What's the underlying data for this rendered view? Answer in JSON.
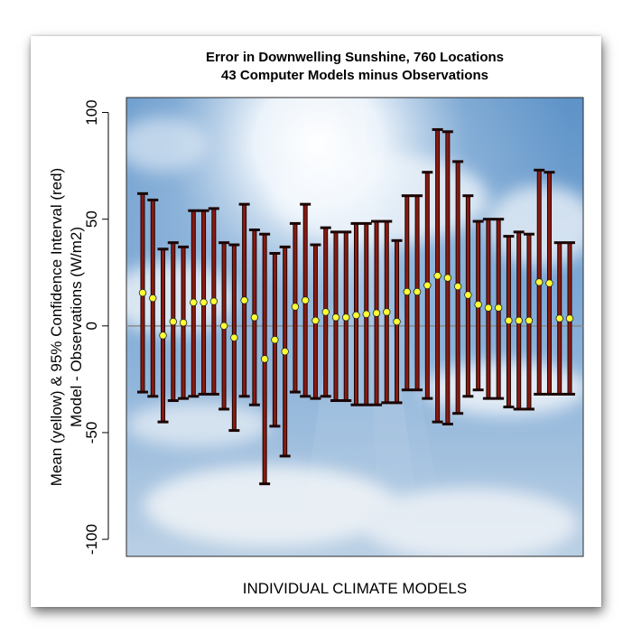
{
  "chart_data": {
    "type": "errorbar",
    "title": "Error in Downwelling Sunshine, 760 Locations",
    "subtitle": "43 Computer Models minus Observations",
    "xlabel": "INDIVIDUAL CLIMATE MODELS",
    "ylabel_line1": "Mean (yellow) & 95% Confidence Interval (red)",
    "ylabel_line2": "Model - Observations (W/m2)",
    "ylim": [
      -108,
      107
    ],
    "yticks": [
      100,
      50,
      0,
      -50,
      -100
    ],
    "ytick_labels": [
      "100",
      "50",
      "0",
      "-50",
      "-100"
    ],
    "colors": {
      "mean": "#ffff33",
      "interval": "#8b1a10",
      "zero_line": "#8a8a8a"
    },
    "points": [
      {
        "mean": 15.5,
        "upper": 62,
        "lower": -31
      },
      {
        "mean": 13,
        "upper": 59,
        "lower": -33
      },
      {
        "mean": -4.5,
        "upper": 36,
        "lower": -45
      },
      {
        "mean": 2,
        "upper": 39,
        "lower": -35
      },
      {
        "mean": 1.5,
        "upper": 37,
        "lower": -34
      },
      {
        "mean": 11,
        "upper": 54,
        "lower": -33
      },
      {
        "mean": 11,
        "upper": 54,
        "lower": -32
      },
      {
        "mean": 11.5,
        "upper": 55,
        "lower": -32
      },
      {
        "mean": 0,
        "upper": 39,
        "lower": -39
      },
      {
        "mean": -5.5,
        "upper": 38,
        "lower": -49
      },
      {
        "mean": 12,
        "upper": 57,
        "lower": -33
      },
      {
        "mean": 4,
        "upper": 45,
        "lower": -37
      },
      {
        "mean": -15.5,
        "upper": 43,
        "lower": -74
      },
      {
        "mean": -6.5,
        "upper": 34,
        "lower": -47
      },
      {
        "mean": -12,
        "upper": 37,
        "lower": -61
      },
      {
        "mean": 9,
        "upper": 48,
        "lower": -31
      },
      {
        "mean": 12,
        "upper": 57,
        "lower": -33
      },
      {
        "mean": 2.5,
        "upper": 38,
        "lower": -34
      },
      {
        "mean": 6.5,
        "upper": 46,
        "lower": -33
      },
      {
        "mean": 4,
        "upper": 44,
        "lower": -35
      },
      {
        "mean": 4,
        "upper": 44,
        "lower": -35
      },
      {
        "mean": 5,
        "upper": 48,
        "lower": -37
      },
      {
        "mean": 5.5,
        "upper": 48,
        "lower": -37
      },
      {
        "mean": 6,
        "upper": 49,
        "lower": -37
      },
      {
        "mean": 6.5,
        "upper": 49,
        "lower": -36
      },
      {
        "mean": 2,
        "upper": 40,
        "lower": -36
      },
      {
        "mean": 16,
        "upper": 61,
        "lower": -30
      },
      {
        "mean": 16,
        "upper": 61,
        "lower": -30
      },
      {
        "mean": 19,
        "upper": 72,
        "lower": -34
      },
      {
        "mean": 23.5,
        "upper": 92,
        "lower": -45
      },
      {
        "mean": 22.5,
        "upper": 91,
        "lower": -46
      },
      {
        "mean": 18.5,
        "upper": 77,
        "lower": -41
      },
      {
        "mean": 14.5,
        "upper": 61,
        "lower": -33
      },
      {
        "mean": 10,
        "upper": 49,
        "lower": -30
      },
      {
        "mean": 8.5,
        "upper": 50,
        "lower": -34
      },
      {
        "mean": 8.5,
        "upper": 50,
        "lower": -34
      },
      {
        "mean": 2.5,
        "upper": 42,
        "lower": -38
      },
      {
        "mean": 2.5,
        "upper": 44,
        "lower": -39
      },
      {
        "mean": 2.5,
        "upper": 43,
        "lower": -39
      },
      {
        "mean": 20.5,
        "upper": 73,
        "lower": -32
      },
      {
        "mean": 20,
        "upper": 72,
        "lower": -32
      },
      {
        "mean": 3.5,
        "upper": 39,
        "lower": -32
      },
      {
        "mean": 3.5,
        "upper": 39,
        "lower": -32
      }
    ]
  }
}
